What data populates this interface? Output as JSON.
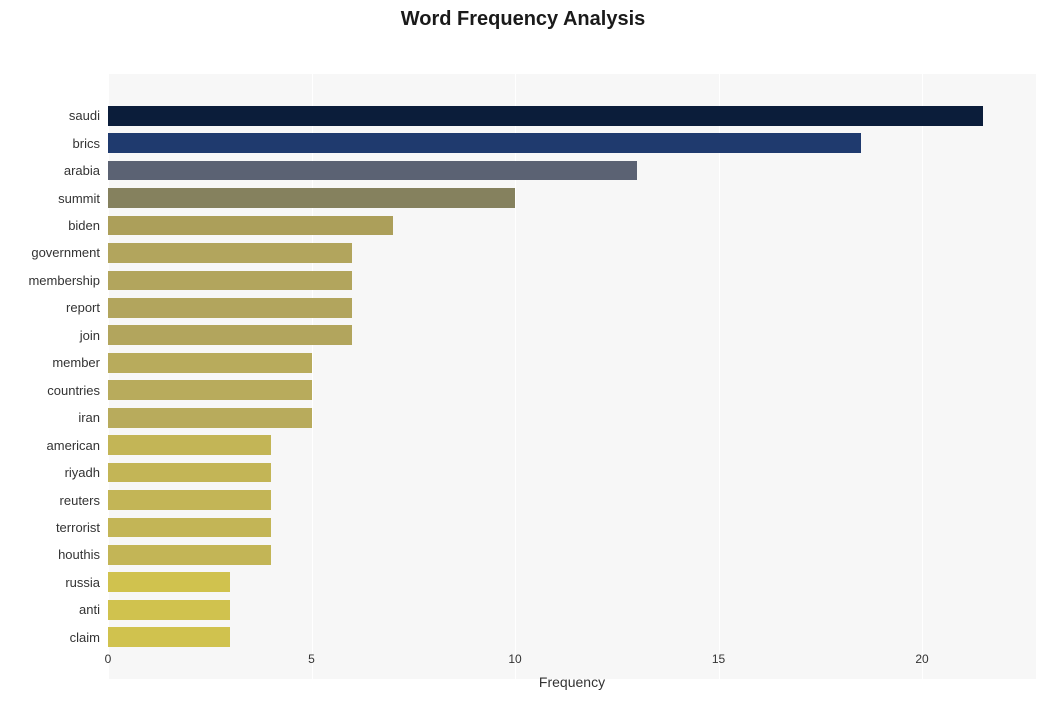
{
  "chart": {
    "type": "bar",
    "orientation": "horizontal",
    "title": "Word Frequency Analysis",
    "title_fontsize": 20,
    "title_fontweight": "bold",
    "title_color": "#1a1a1a",
    "xlabel": "Frequency",
    "xlabel_fontsize": 14,
    "xlabel_color": "#333333",
    "ylabel_fontsize": 13,
    "ylabel_color": "#333333",
    "xlim": [
      0,
      22.8
    ],
    "xtick_step": 5,
    "xticks": [
      0,
      5,
      10,
      15,
      20
    ],
    "xtick_fontsize": 12,
    "xtick_color": "#333333",
    "background_color": "#ffffff",
    "plot_background_color": "#f7f7f7",
    "grid_color": "#ffffff",
    "chart_area_top": 35,
    "chart_area_height": 605,
    "bar_height_ratio": 0.72,
    "categories": [
      "saudi",
      "brics",
      "arabia",
      "summit",
      "biden",
      "government",
      "membership",
      "report",
      "join",
      "member",
      "countries",
      "iran",
      "american",
      "riyadh",
      "reuters",
      "terrorist",
      "houthis",
      "russia",
      "anti",
      "claim"
    ],
    "values": [
      21.5,
      18.5,
      13,
      10,
      7,
      6,
      6,
      6,
      6,
      5,
      5,
      5,
      4,
      4,
      4,
      4,
      4,
      3,
      3,
      3
    ],
    "bar_colors": [
      "#0b1d3a",
      "#1f3a6e",
      "#5b6273",
      "#85815e",
      "#ac9f5a",
      "#b2a55d",
      "#b2a55d",
      "#b2a55d",
      "#b2a55d",
      "#b8ab5c",
      "#b8ab5c",
      "#b8ab5c",
      "#c3b556",
      "#c3b556",
      "#c3b556",
      "#c3b556",
      "#c3b556",
      "#d0c24e",
      "#d0c24e",
      "#d0c24e"
    ]
  }
}
